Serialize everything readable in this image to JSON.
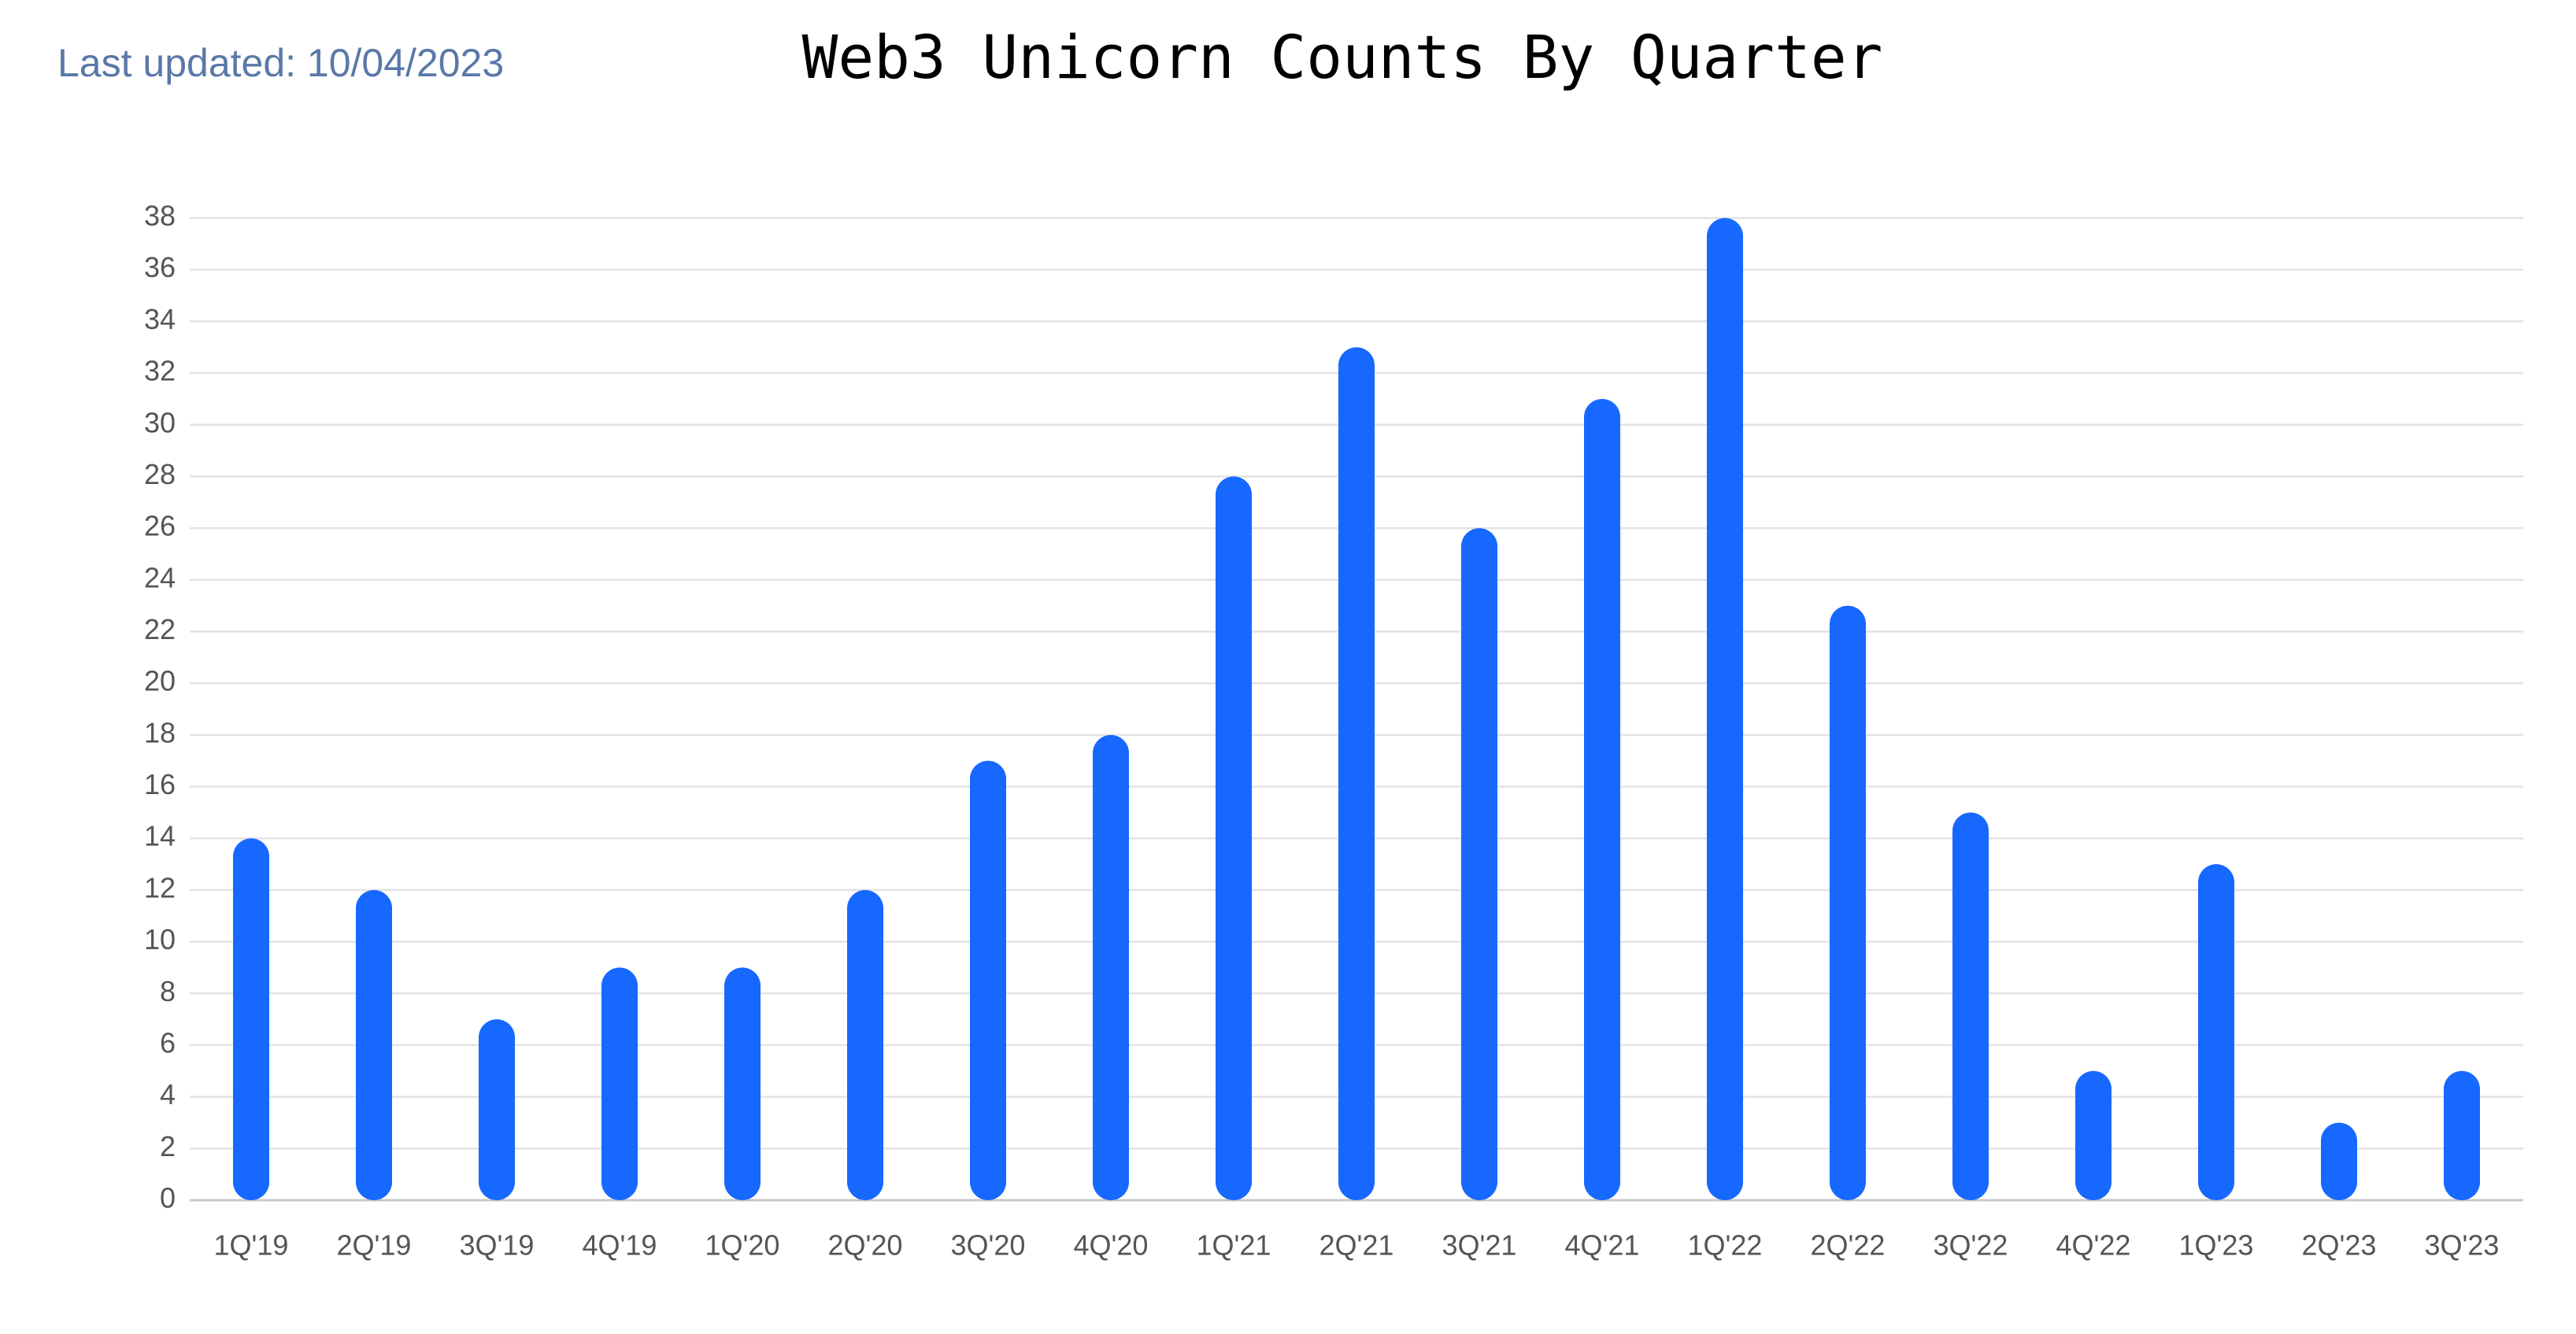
{
  "last_updated": "Last updated: 10/04/2023",
  "chart_data": {
    "type": "bar",
    "title": "Web3 Unicorn Counts By Quarter",
    "categories": [
      "1Q'19",
      "2Q'19",
      "3Q'19",
      "4Q'19",
      "1Q'20",
      "2Q'20",
      "3Q'20",
      "4Q'20",
      "1Q'21",
      "2Q'21",
      "3Q'21",
      "4Q'21",
      "1Q'22",
      "2Q'22",
      "3Q'22",
      "4Q'22",
      "1Q'23",
      "2Q'23",
      "3Q'23"
    ],
    "values": [
      14,
      12,
      7,
      9,
      9,
      12,
      17,
      18,
      28,
      33,
      26,
      31,
      38,
      23,
      15,
      5,
      13,
      3,
      5
    ],
    "color": "#1668ff",
    "ylim": [
      0,
      38
    ],
    "yticks": [
      0,
      2,
      4,
      6,
      8,
      10,
      12,
      14,
      16,
      18,
      20,
      22,
      24,
      26,
      28,
      30,
      32,
      34,
      36,
      38
    ],
    "grid": true
  }
}
